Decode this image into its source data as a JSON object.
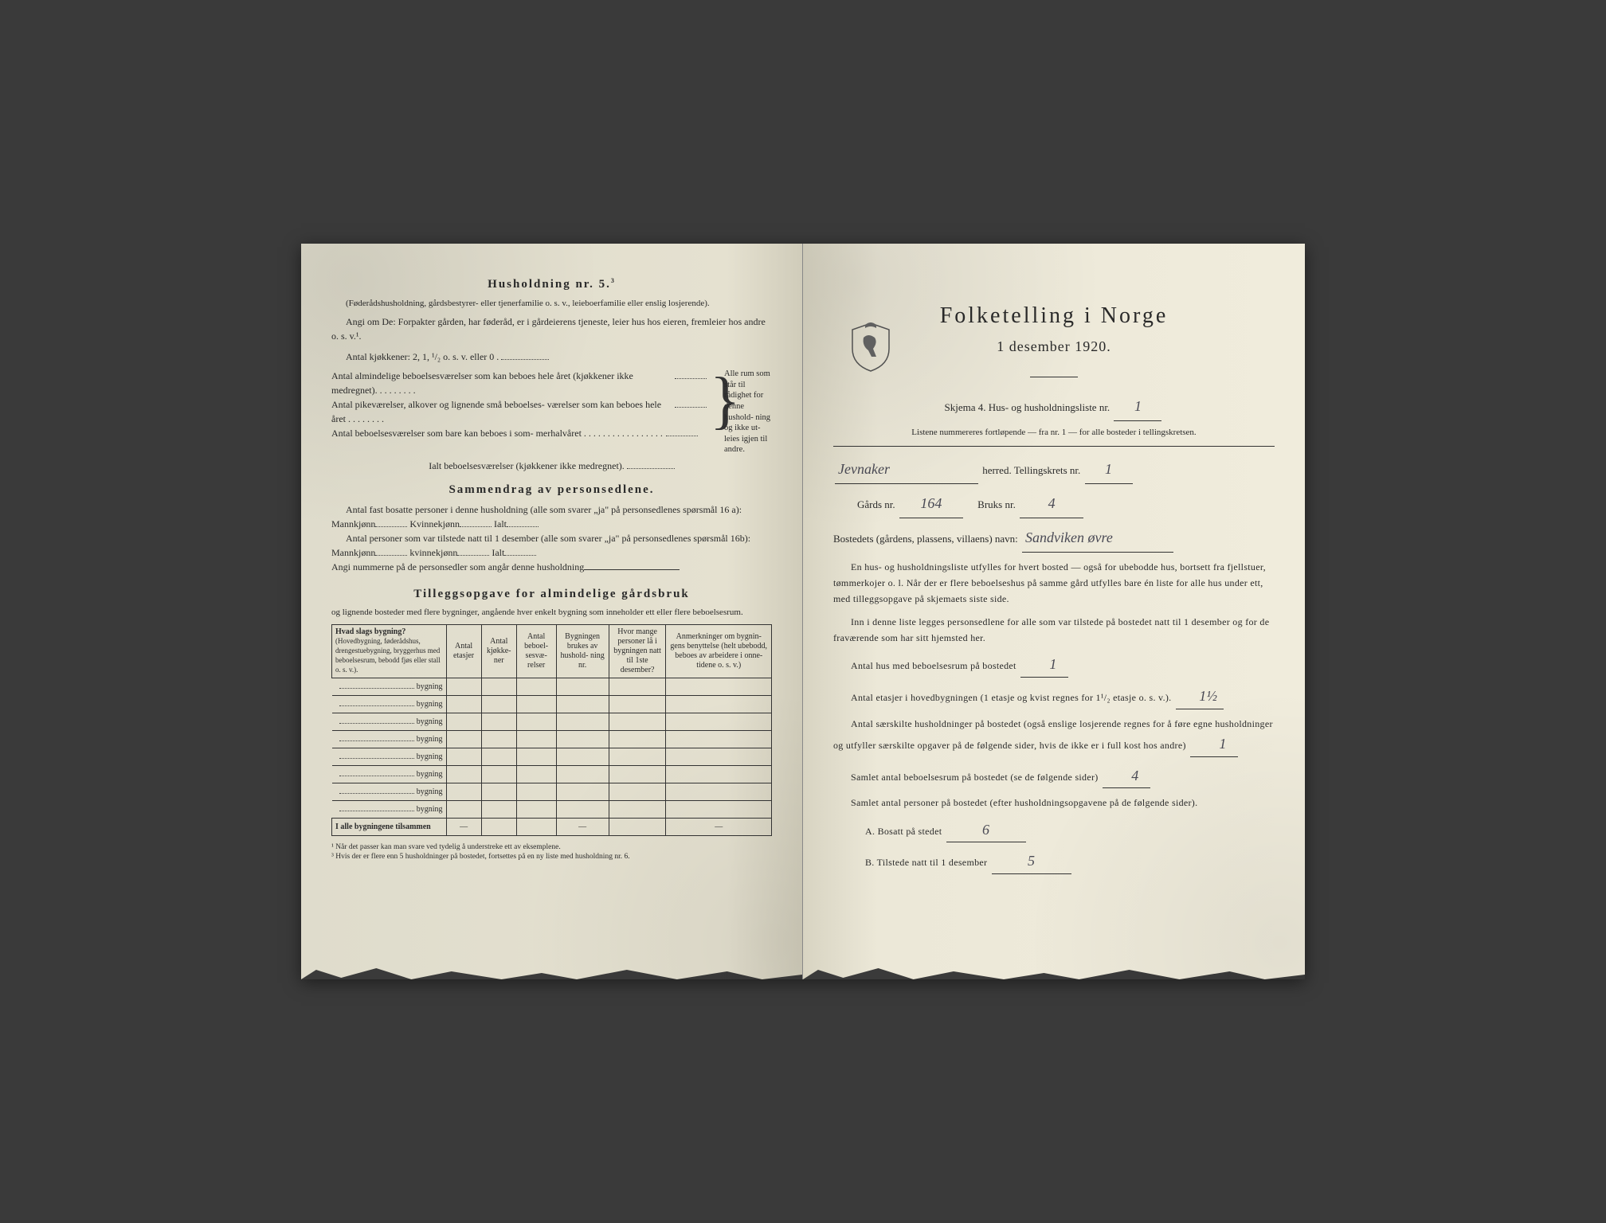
{
  "left": {
    "heading1": "Husholdning nr. 5.",
    "heading1_sup": "3",
    "sub1": "(Føderådshusholdning, gårdsbestyrer- eller tjenerfamilie o. s. v., leieboerfamilie eller enslig losjerende).",
    "line_angi": "Angi om De: Forpakter gården, har føderåd, er i gårdeierens tjeneste, leier hus hos eieren, fremleier hos andre o. s. v.¹.",
    "kjokkener": "Antal kjøkkener: 2, 1, ¹/₂ o. s. v. eller 0 .",
    "brace_rows": [
      "Antal almindelige beboelsesværelser som kan beboes hele året (kjøkkener ikke medregnet). . . . . . . . .",
      "Antal pikeværelser, alkover og lignende små beboelses- værelser som kan beboes hele året . . . . . . . .",
      "Antal beboelsesværelser som bare kan beboes i som- merhalvåret . . . . . . . . . . . . . . . . ."
    ],
    "brace_side": "Alle rum som står til rådighet for denne hushold- ning og ikke ut- leies igjen til andre.",
    "ialt_row": "Ialt beboelsesværelser (kjøkkener ikke medregnet).",
    "heading2": "Sammendrag av personsedlene.",
    "sd_line1": "Antal fast bosatte personer i denne husholdning (alle som svarer „ja\" på personsedlenes spørsmål 16 a): Mannkjønn",
    "sd_kv": "Kvinnekjønn",
    "sd_ialt": "Ialt",
    "sd_line2": "Antal personer som var tilstede natt til 1 desember (alle som svarer „ja\" på personsedlenes spørsmål 16b): Mannkjønn",
    "sd_kv2": "kvinnekjønn",
    "sd_line3": "Angi nummerne på de personsedler som angår denne husholdning",
    "heading3": "Tilleggsopgave for almindelige gårdsbruk",
    "sub3": "og lignende bosteder med flere bygninger, angående hver enkelt bygning som inneholder ett eller flere beboelsesrum.",
    "table": {
      "h1": "Hvad slags bygning?",
      "h1_sub": "(Hovedbygning, føderådshus, drengestuebygning, bryggerhus med beboelsesrum, bebodd fjøs eller stall o. s. v.).",
      "h2": "Antal etasjer",
      "h3": "Antal kjøkke- ner",
      "h4": "Antal beboel- sesvæ- relser",
      "h5": "Bygningen brukes av hushold- ning nr.",
      "h6": "Hvor mange personer lå i bygningen natt til 1ste desember?",
      "h7": "Anmerkninger om bygnin- gens benyttelse (helt ubebodd, beboes av arbeidere i onne- tidene o. s. v.)",
      "row_label": "bygning",
      "rows": 8,
      "total_label": "I alle bygningene tilsammen"
    },
    "fn1": "¹ Når det passer kan man svare ved tydelig å understreke ett av eksemplene.",
    "fn2": "³ Hvis der er flere enn 5 husholdninger på bostedet, fortsettes på en ny liste med husholdning nr. 6."
  },
  "right": {
    "title": "Folketelling i Norge",
    "date": "1 desember 1920.",
    "skjema_pre": "Skjema 4.   Hus- og husholdningsliste nr.",
    "skjema_nr": "1",
    "listene": "Listene nummereres fortløpende — fra nr. 1 — for alle bosteder i tellingskretsen.",
    "herred_val": "Jevnaker",
    "herred_lbl": "herred.    Tellingskrets nr.",
    "krets_nr": "1",
    "gards_lbl": "Gårds nr.",
    "gards_nr": "164",
    "bruks_lbl": "Bruks nr.",
    "bruks_nr": "4",
    "bosted_lbl": "Bostedets (gårdens, plassens, villaens) navn:",
    "bosted_val": "Sandviken øvre",
    "para1": "En hus- og husholdningsliste utfylles for hvert bosted — også for ubebodde hus, bortsett fra fjellstuer, tømmerkojer o. l. Når der er flere beboelseshus på samme gård utfylles bare én liste for alle hus under ett, med tilleggsopgave på skjemaets siste side.",
    "para2": "Inn i denne liste legges personsedlene for alle som var tilstede på bostedet natt til 1 desember og for de fraværende som har sitt hjemsted her.",
    "q1": "Antal hus med beboelsesrum på bostedet",
    "a1": "1",
    "q2_pre": "Antal etasjer i hovedbygningen (1 etasje og kvist regnes for 1¹/₂ etasje o. s. v.).",
    "a2": "1½",
    "q3": "Antal særskilte husholdninger på bostedet (også enslige losjerende regnes for å føre egne husholdninger og utfyller særskilte opgaver på de følgende sider, hvis de ikke er i full kost hos andre)",
    "a3": "1",
    "q4": "Samlet antal beboelsesrum på bostedet (se de følgende sider)",
    "a4": "4",
    "q5": "Samlet antal personer på bostedet (efter husholdningsopgavene på de følgende sider).",
    "qa_label": "A.  Bosatt på stedet",
    "aa": "6",
    "qb_label": "B.  Tilstede natt til 1 desember",
    "ab": "5"
  }
}
